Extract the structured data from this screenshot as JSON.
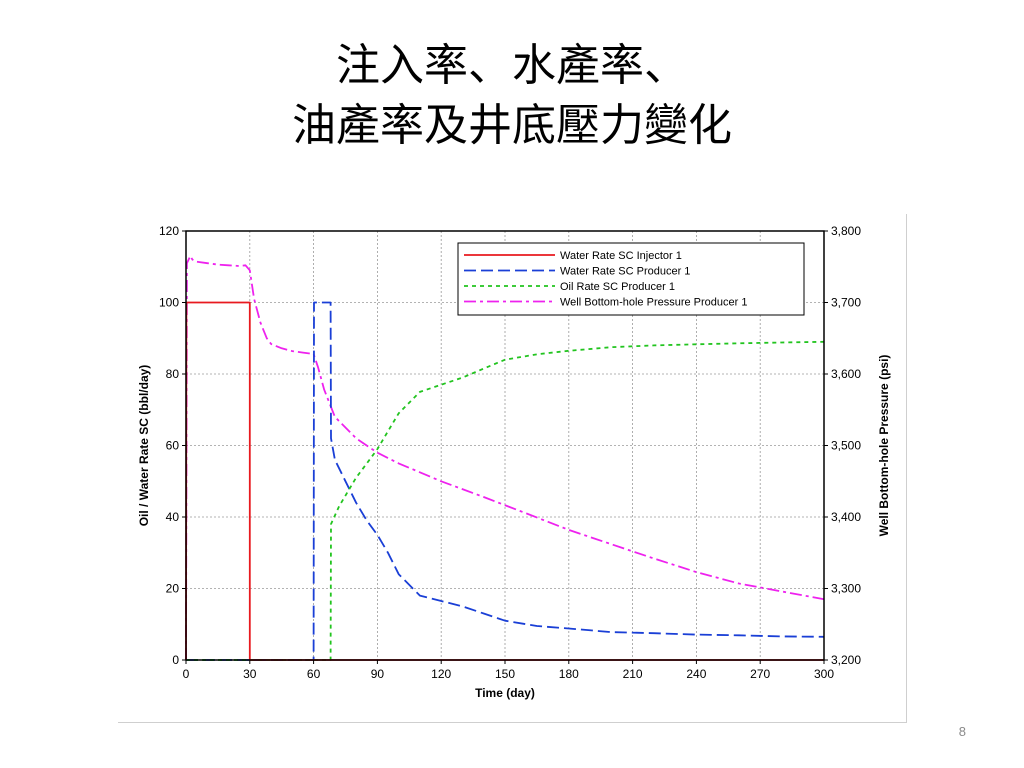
{
  "slide": {
    "title_line1": "注入率、水產率、",
    "title_line2": "油產率及井底壓力變化",
    "page_number": "8"
  },
  "chart_data": {
    "type": "line",
    "xlabel": "Time (day)",
    "ylabel_left": "Oil / Water Rate SC (bbl/day)",
    "ylabel_right": "Well Bottom-hole Pressure (psi)",
    "xlim": [
      0,
      300
    ],
    "ylim_left": [
      0,
      120
    ],
    "ylim_right": [
      3200,
      3800
    ],
    "xticks": [
      "0",
      "30",
      "60",
      "90",
      "120",
      "150",
      "180",
      "210",
      "240",
      "270",
      "300"
    ],
    "yticks_left": [
      "0",
      "20",
      "40",
      "60",
      "80",
      "100",
      "120"
    ],
    "yticks_right": [
      "3,200",
      "3,300",
      "3,400",
      "3,500",
      "3,600",
      "3,700",
      "3,800"
    ],
    "grid": true,
    "legend_position": "top-right",
    "series": [
      {
        "name": "Water Rate SC Injector 1",
        "axis": "left",
        "color": "#e8191f",
        "dash": "solid",
        "x": [
          0,
          0.2,
          30,
          30,
          30,
          30,
          300
        ],
        "y": [
          0,
          100,
          100,
          50,
          50,
          0,
          0
        ]
      },
      {
        "name": "Water Rate SC Producer 1",
        "axis": "left",
        "color": "#1a3fd6",
        "dash": "long",
        "x": [
          0,
          60,
          60.2,
          68,
          68.2,
          70,
          75,
          80,
          85,
          90,
          95,
          100,
          110,
          120,
          130,
          140,
          150,
          165,
          180,
          200,
          220,
          240,
          260,
          280,
          300
        ],
        "y": [
          0,
          0,
          100,
          100,
          62,
          56,
          50,
          44,
          39,
          35,
          30,
          24,
          18,
          16.5,
          15,
          13,
          11,
          9.5,
          8.8,
          7.8,
          7.5,
          7.1,
          6.9,
          6.6,
          6.5
        ]
      },
      {
        "name": "Oil Rate SC Producer 1",
        "axis": "left",
        "color": "#22c41f",
        "dash": "short",
        "x": [
          0,
          68,
          68.2,
          72,
          76,
          80,
          85,
          90,
          95,
          100,
          105,
          110,
          120,
          130,
          140,
          150,
          165,
          180,
          200,
          220,
          240,
          260,
          280,
          300
        ],
        "y": [
          0,
          0,
          38,
          43,
          47,
          51,
          55,
          59,
          64,
          69,
          72,
          75,
          77,
          79,
          81.5,
          84,
          85.5,
          86.5,
          87.5,
          88,
          88.3,
          88.6,
          88.8,
          89
        ]
      },
      {
        "name": "Well Bottom-hole Pressure Producer 1",
        "axis": "right",
        "color": "#ee22ee",
        "dash": "dashdot",
        "x": [
          0,
          0.4,
          2,
          3,
          5,
          10,
          15,
          20,
          25,
          28,
          30,
          32,
          35,
          38,
          40,
          45,
          50,
          55,
          60,
          62,
          65,
          70,
          80,
          90,
          100,
          120,
          140,
          160,
          180,
          200,
          220,
          240,
          260,
          280,
          300
        ],
        "y": [
          3200,
          3755,
          3765,
          3760,
          3757,
          3755,
          3753,
          3752,
          3751,
          3752,
          3745,
          3705,
          3672,
          3650,
          3642,
          3636,
          3632,
          3630,
          3628,
          3610,
          3578,
          3540,
          3510,
          3490,
          3475,
          3450,
          3428,
          3405,
          3382,
          3362,
          3342,
          3323,
          3307,
          3296,
          3285
        ]
      }
    ]
  }
}
